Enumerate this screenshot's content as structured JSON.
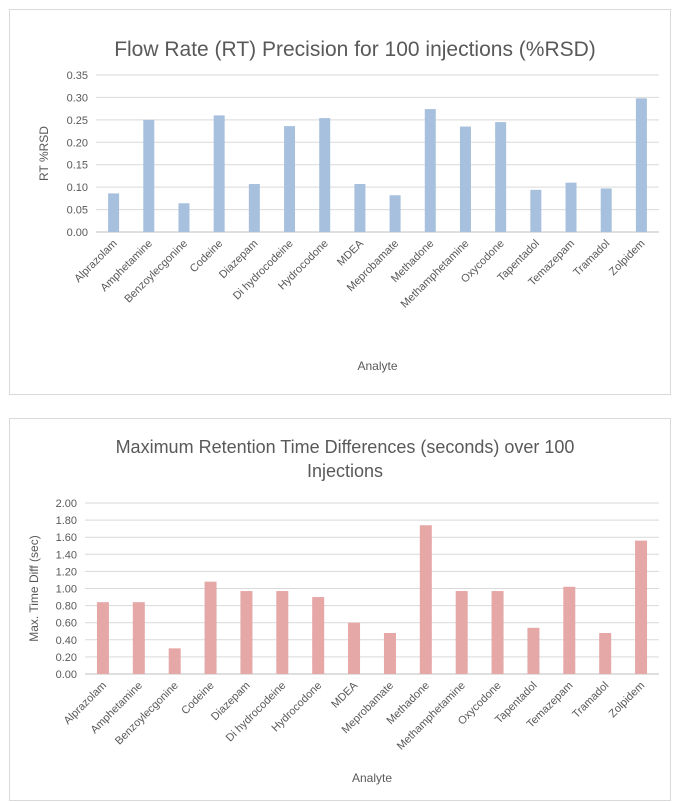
{
  "chart_data": [
    {
      "type": "bar",
      "title": "Flow Rate (RT) Precision for 100 injections (%RSD)",
      "xlabel": "Analyte",
      "ylabel": "RT %RSD",
      "categories": [
        "Alprazolam",
        "Amphetamine",
        "Benzoylecgonine",
        "Codeine",
        "Diazepam",
        "Di hydrocodeine",
        "Hydrocodone",
        "MDEA",
        "Meprobamate",
        "Methadone",
        "Methamphetamine",
        "Oxycodone",
        "Tapentadol",
        "Temazepam",
        "Tramadol",
        "Zolpidem"
      ],
      "values": [
        0.086,
        0.25,
        0.064,
        0.26,
        0.107,
        0.236,
        0.254,
        0.107,
        0.082,
        0.274,
        0.235,
        0.245,
        0.094,
        0.11,
        0.097,
        0.298
      ],
      "ylim": [
        0,
        0.35
      ],
      "yticks": [
        "0.00",
        "0.05",
        "0.10",
        "0.15",
        "0.20",
        "0.25",
        "0.30",
        "0.35"
      ],
      "grid": true,
      "legend": "none",
      "color": "#a7c0de"
    },
    {
      "type": "bar",
      "title": "Maximum Retention Time Differences (seconds) over 100 Injections",
      "title_lines": [
        "Maximum Retention Time Differences (seconds) over 100",
        "Injections"
      ],
      "xlabel": "Analyte",
      "ylabel": "Max. Time Diff (sec)",
      "categories": [
        "Alprazolam",
        "Amphetamine",
        "Benzoylecgonine",
        "Codeine",
        "Diazepam",
        "Di hydrocodeine",
        "Hydrocodone",
        "MDEA",
        "Meprobamate",
        "Methadone",
        "Methamphetamine",
        "Oxycodone",
        "Tapentadol",
        "Temazepam",
        "Tramadol",
        "Zolpidem"
      ],
      "values": [
        0.84,
        0.84,
        0.3,
        1.08,
        0.97,
        0.97,
        0.9,
        0.6,
        0.48,
        1.74,
        0.97,
        0.97,
        0.54,
        1.02,
        0.48,
        1.56
      ],
      "ylim": [
        0,
        2.0
      ],
      "yticks": [
        "0.00",
        "0.20",
        "0.40",
        "0.60",
        "0.80",
        "1.00",
        "1.20",
        "1.40",
        "1.60",
        "1.80",
        "2.00"
      ],
      "grid": true,
      "legend": "none",
      "color": "#e6a7a7"
    }
  ]
}
